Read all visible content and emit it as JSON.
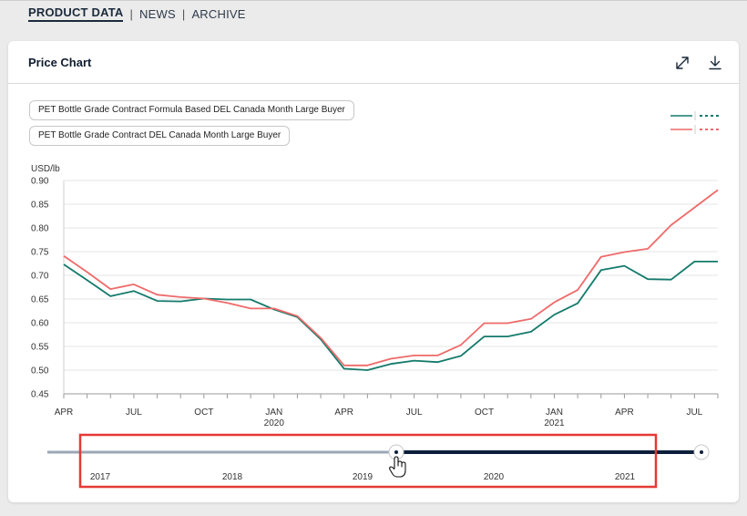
{
  "nav": {
    "items": [
      {
        "label": "PRODUCT DATA",
        "active": true
      },
      {
        "label": "NEWS",
        "active": false
      },
      {
        "label": "ARCHIVE",
        "active": false
      }
    ],
    "separator": "|"
  },
  "card": {
    "title": "Price Chart",
    "icons": [
      "expand-icon",
      "download-icon"
    ]
  },
  "legend": {
    "items": [
      {
        "label": "PET Bottle Grade Contract Formula Based DEL Canada Month Large Buyer",
        "color": "#137a6b"
      },
      {
        "label": "PET Bottle Grade Contract DEL Canada Month Large Buyer",
        "color": "#ef6a6a"
      }
    ]
  },
  "chart_data": {
    "type": "line",
    "ylabel": "USD/lb",
    "ylim": [
      0.45,
      0.9
    ],
    "yticks": [
      "0.90",
      "0.85",
      "0.80",
      "0.75",
      "0.70",
      "0.65",
      "0.60",
      "0.55",
      "0.50",
      "0.45"
    ],
    "x": [
      "2019-04",
      "2019-05",
      "2019-06",
      "2019-07",
      "2019-08",
      "2019-09",
      "2019-10",
      "2019-11",
      "2019-12",
      "2020-01",
      "2020-02",
      "2020-03",
      "2020-04",
      "2020-05",
      "2020-06",
      "2020-07",
      "2020-08",
      "2020-09",
      "2020-10",
      "2020-11",
      "2020-12",
      "2021-01",
      "2021-02",
      "2021-03",
      "2021-04",
      "2021-05",
      "2021-06",
      "2021-07",
      "2021-08"
    ],
    "xticks": [
      {
        "month": "APR",
        "year": ""
      },
      {
        "month": "JUL",
        "year": ""
      },
      {
        "month": "OCT",
        "year": ""
      },
      {
        "month": "JAN",
        "year": "2020"
      },
      {
        "month": "APR",
        "year": ""
      },
      {
        "month": "JUL",
        "year": ""
      },
      {
        "month": "OCT",
        "year": ""
      },
      {
        "month": "JAN",
        "year": "2021"
      },
      {
        "month": "APR",
        "year": ""
      },
      {
        "month": "JUL",
        "year": ""
      }
    ],
    "series": [
      {
        "name": "PET Bottle Grade Contract Formula Based DEL Canada Month Large Buyer",
        "color": "#137a6b",
        "values": [
          0.723,
          0.69,
          0.656,
          0.667,
          0.646,
          0.645,
          0.651,
          0.649,
          0.649,
          0.628,
          0.612,
          0.565,
          0.503,
          0.5,
          0.513,
          0.52,
          0.517,
          0.53,
          0.571,
          0.571,
          0.581,
          0.617,
          0.641,
          0.711,
          0.72,
          0.692,
          0.691,
          0.729,
          0.729
        ]
      },
      {
        "name": "PET Bottle Grade Contract DEL Canada Month Large Buyer",
        "color": "#ef6a6a",
        "values": [
          0.741,
          0.707,
          0.671,
          0.681,
          0.659,
          0.654,
          0.651,
          0.642,
          0.63,
          0.63,
          0.614,
          0.568,
          0.51,
          0.51,
          0.524,
          0.531,
          0.531,
          0.553,
          0.599,
          0.599,
          0.608,
          0.643,
          0.669,
          0.739,
          0.749,
          0.756,
          0.806,
          0.843,
          0.88
        ]
      }
    ],
    "grid": true,
    "legend_position": "top-right"
  },
  "range_slider": {
    "years": [
      "2017",
      "2018",
      "2019",
      "2020",
      "2021"
    ],
    "selected_start": "2019-04",
    "selected_end": "2021-08",
    "active_color": "#0b1f3a",
    "inactive_color": "#9aa7b6",
    "highlight_color": "#e53935"
  }
}
